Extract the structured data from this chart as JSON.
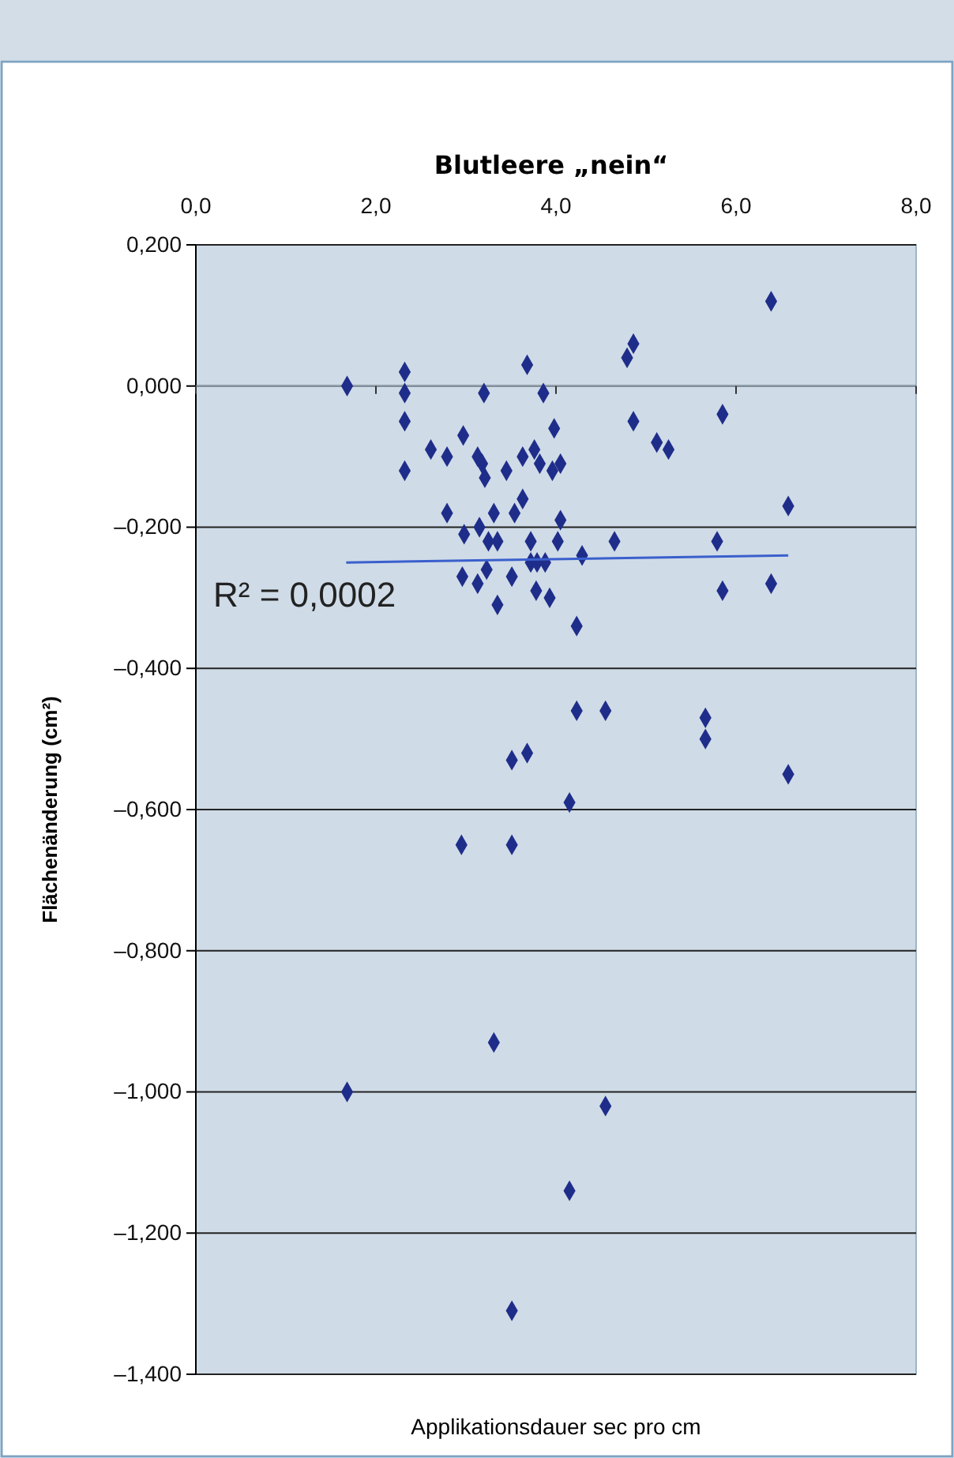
{
  "chart_data": {
    "type": "scatter",
    "title": "Blutleere „nein“",
    "xlabel": "Applikationsdauer sec pro cm",
    "ylabel": "Flächenänderung (cm²)",
    "xlim": [
      0,
      8
    ],
    "xticks": [
      {
        "value": 0,
        "label": "0,0"
      },
      {
        "value": 2,
        "label": "2,0"
      },
      {
        "value": 4,
        "label": "4,0"
      },
      {
        "value": 6,
        "label": "6,0"
      },
      {
        "value": 8,
        "label": "8,0"
      }
    ],
    "ylim": [
      -1.4,
      0.2
    ],
    "yticks": [
      {
        "value": 0.2,
        "label": "0,200"
      },
      {
        "value": 0,
        "label": "0,000"
      },
      {
        "value": -0.2,
        "label": "–0,200"
      },
      {
        "value": -0.4,
        "label": "–0,400"
      },
      {
        "value": -0.6,
        "label": "–0,600"
      },
      {
        "value": -0.8,
        "label": "–0,800"
      },
      {
        "value": -1.0,
        "label": "–1,000"
      },
      {
        "value": -1.2,
        "label": "–1,200"
      },
      {
        "value": -1.4,
        "label": "–1,400"
      }
    ],
    "grid": "y",
    "marker": "diamond",
    "annotations": [
      "R² = 0,0002"
    ],
    "series": [
      {
        "color": "#1f2d8a",
        "x": [
          1.68,
          2.32,
          2.32,
          2.32,
          2.32,
          2.61,
          2.79,
          2.97,
          3.2,
          3.68,
          3.86,
          3.98,
          3.13,
          3.18,
          3.21,
          3.45,
          3.63,
          3.76,
          3.82,
          3.96,
          4.05,
          3.63,
          2.79,
          3.31,
          3.54,
          4.05,
          2.98,
          3.15,
          3.25,
          3.35,
          3.72,
          4.02,
          3.72,
          3.79,
          3.88,
          2.96,
          3.13,
          3.23,
          3.51,
          3.35,
          3.78,
          3.93,
          6.39,
          4.86,
          4.79,
          5.85,
          4.86,
          5.12,
          5.25,
          4.65,
          5.79,
          6.58,
          4.29,
          6.39,
          5.85,
          4.23,
          4.23,
          4.55,
          5.66,
          5.66,
          3.51,
          3.68,
          6.58,
          4.15,
          2.95,
          3.51,
          3.31,
          1.68,
          4.55,
          4.15,
          3.51
        ],
        "values": [
          0.0,
          0.02,
          -0.01,
          -0.05,
          -0.12,
          -0.09,
          -0.1,
          -0.07,
          -0.01,
          0.03,
          -0.01,
          -0.06,
          -0.1,
          -0.11,
          -0.13,
          -0.12,
          -0.1,
          -0.09,
          -0.11,
          -0.12,
          -0.11,
          -0.16,
          -0.18,
          -0.18,
          -0.18,
          -0.19,
          -0.21,
          -0.2,
          -0.22,
          -0.22,
          -0.22,
          -0.22,
          -0.25,
          -0.25,
          -0.25,
          -0.27,
          -0.28,
          -0.26,
          -0.27,
          -0.31,
          -0.29,
          -0.3,
          0.12,
          0.06,
          0.04,
          -0.04,
          -0.05,
          -0.08,
          -0.09,
          -0.22,
          -0.22,
          -0.17,
          -0.24,
          -0.28,
          -0.29,
          -0.34,
          -0.46,
          -0.46,
          -0.47,
          -0.5,
          -0.53,
          -0.52,
          -0.55,
          -0.59,
          -0.65,
          -0.65,
          -0.93,
          -1.0,
          -1.02,
          -1.14,
          -1.31
        ]
      },
      {
        "type": "line",
        "color": "#3a5fcd",
        "marker": "none",
        "x": [
          1.67,
          6.58
        ],
        "values": [
          -0.25,
          -0.24
        ]
      }
    ]
  }
}
